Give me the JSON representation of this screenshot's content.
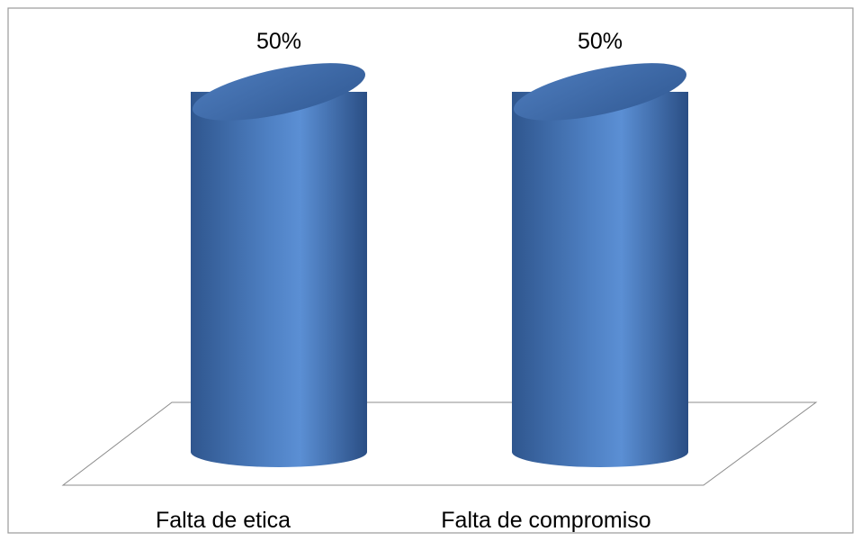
{
  "chart_data": {
    "type": "bar",
    "style": "3d-cylinder",
    "categories": [
      "Falta de etica",
      "Falta de compromiso"
    ],
    "values": [
      50,
      50
    ],
    "data_labels": [
      "50%",
      "50%"
    ],
    "ylim": [
      0,
      50
    ],
    "grid": false,
    "legend": false,
    "title": "",
    "xlabel": "",
    "ylabel": "",
    "colors": {
      "bar_dark": "#2f568e",
      "bar_mid": "#4f81c4",
      "bar_light": "#5b8fd4",
      "bar_top": "#3f6ba8"
    }
  }
}
